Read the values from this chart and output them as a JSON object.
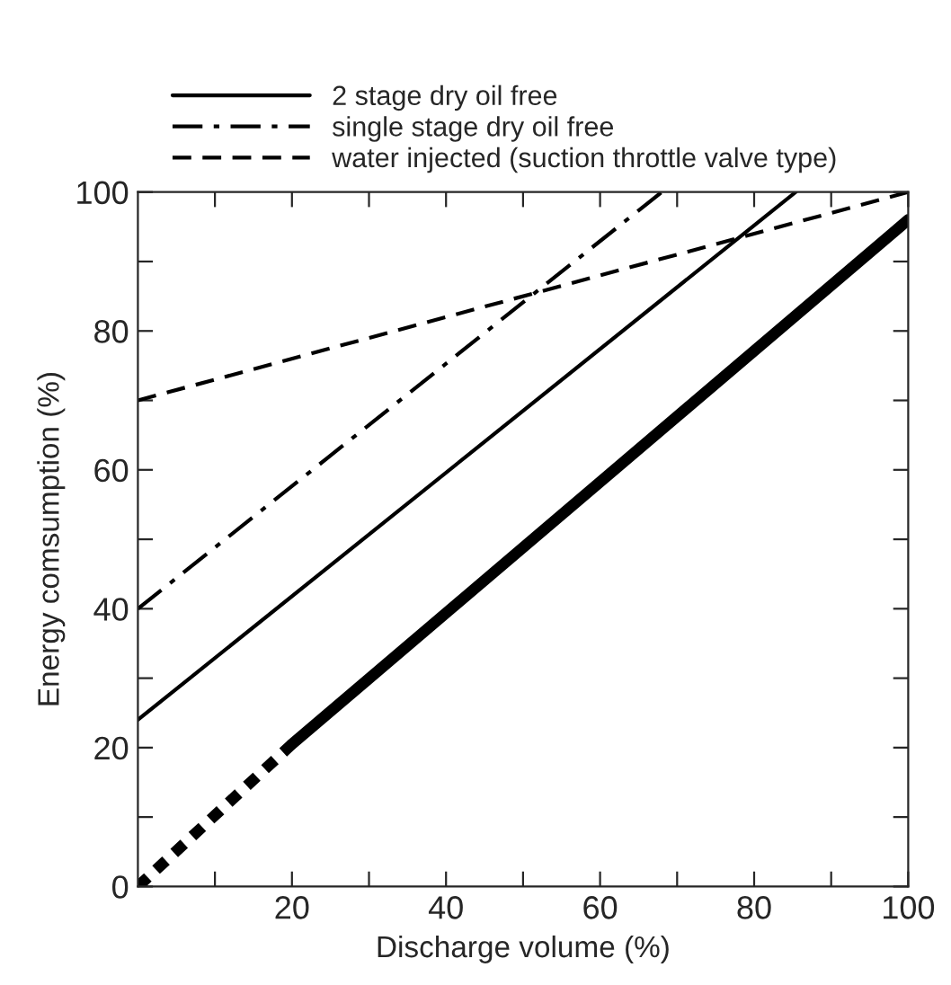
{
  "chart_data": {
    "type": "line",
    "xlabel": "Discharge volume (%)",
    "ylabel": "Energy comsumption (%)",
    "xlim": [
      0,
      100
    ],
    "ylim": [
      0,
      100
    ],
    "xticks": [
      {
        "value": 10,
        "label": null
      },
      20,
      {
        "value": 30,
        "label": null
      },
      40,
      {
        "value": 50,
        "label": null
      },
      60,
      {
        "value": 70,
        "label": null
      },
      80,
      {
        "value": 90,
        "label": null
      },
      100
    ],
    "yticks": [
      0,
      {
        "value": 10,
        "label": null
      },
      20,
      {
        "value": 30,
        "label": null
      },
      40,
      {
        "value": 50,
        "label": null
      },
      60,
      {
        "value": 70,
        "label": null
      },
      80,
      {
        "value": 90,
        "label": null
      },
      100
    ],
    "grid": false,
    "legend": "top",
    "marker": "none",
    "series": [
      {
        "color": "#000000",
        "line_style": "dotted",
        "x": [
          0,
          20
        ],
        "values": [
          0,
          20.5
        ]
      },
      {
        "color": "#000000",
        "line_style": "solid",
        "x": [
          20,
          100
        ],
        "values": [
          20.5,
          96
        ]
      },
      {
        "name": "2 stage dry oil free",
        "color": "#000000",
        "line_style": "solid",
        "x": [
          0,
          85.4
        ],
        "values": [
          24,
          100
        ]
      },
      {
        "name": "single stage dry oil free",
        "color": "#000000",
        "line_style": "dashdot",
        "x": [
          0,
          68
        ],
        "values": [
          40,
          100
        ]
      },
      {
        "name": "water injected (suction throttle valve type)",
        "color": "#000000",
        "line_style": "dashed",
        "x": [
          0,
          100
        ],
        "values": [
          70,
          100
        ]
      }
    ]
  }
}
